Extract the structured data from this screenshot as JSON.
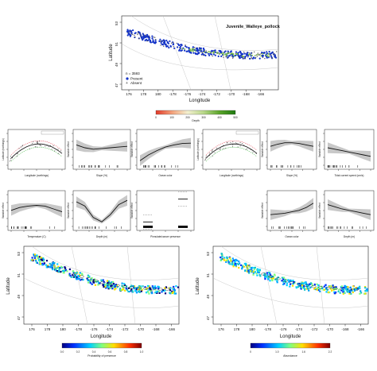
{
  "chart_data": [
    {
      "type": "scatter",
      "title": "Juvenile_Walleye_pollock",
      "xlabel": "Longitude",
      "ylabel": "Latitude",
      "x_ticks": [
        "176",
        "178",
        "180",
        "-178",
        "-176",
        "-174",
        "-172",
        "-170",
        "-168",
        "-166"
      ],
      "y_ticks": [
        "53",
        "51",
        "49",
        "47"
      ],
      "legend_position": "bottom-left",
      "n_label": "n = 3593",
      "legend": [
        {
          "label": "Present",
          "color": "#1434c8",
          "marker": "dot"
        },
        {
          "label": "Absent",
          "color": "#444444",
          "marker": "plus"
        }
      ],
      "colorbar": {
        "label": "Depth",
        "ticks": [
          "0",
          "100",
          "200",
          "300",
          "400",
          "500"
        ],
        "colors": [
          "#e23a2a",
          "#f4a07a",
          "#f4f1d0",
          "#b9d88a",
          "#5ba52a",
          "#1f7a10"
        ]
      }
    },
    {
      "type": "line",
      "panels": [
        {
          "xlabel": "Longitude (northings)",
          "ylabel": "Latitude (northings)",
          "kind": "map"
        },
        {
          "xlabel": "Slope (%)",
          "ylabel": "Variable effect",
          "values": [
            0.2,
            0.0,
            -0.1,
            -0.05,
            0.0,
            0.05,
            0.1
          ]
        },
        {
          "xlabel": "Ocean color",
          "ylabel": "Variable effect",
          "values": [
            -0.9,
            -0.5,
            -0.2,
            0.05,
            0.2,
            0.3,
            0.32
          ]
        },
        {
          "xlabel": "Longitude (northings)",
          "ylabel": "Latitude (northings)",
          "kind": "map"
        },
        {
          "xlabel": "Slope (%)",
          "ylabel": "Variable effect",
          "values": [
            0.1,
            0.25,
            0.35,
            0.35,
            0.3,
            0.2,
            0.1
          ]
        },
        {
          "xlabel": "Tidal current speed (cm/s)",
          "ylabel": "Variable effect",
          "values": [
            0.0,
            -0.1,
            -0.2,
            -0.3,
            -0.4,
            -0.5,
            -0.6
          ]
        },
        {
          "xlabel": "Temperature (C)",
          "ylabel": "Variable effect",
          "values": [
            -0.1,
            0.1,
            0.2,
            0.25,
            0.2,
            0.0,
            -0.2
          ]
        },
        {
          "xlabel": "Depth (m)",
          "ylabel": "Variable effect",
          "values": [
            0.5,
            0.2,
            -0.6,
            -0.9,
            -0.4,
            0.3,
            0.6
          ]
        },
        {
          "xlabel": "Pinnulate/cancer presence",
          "ylabel": "Variable effect",
          "kind": "factor",
          "values": [
            -0.4,
            0.4
          ]
        },
        {
          "xlabel": "Ocean color",
          "ylabel": "Variable effect",
          "values": [
            -0.4,
            -0.35,
            -0.3,
            -0.2,
            -0.1,
            0.1,
            0.4
          ]
        },
        {
          "xlabel": "Depth (m)",
          "ylabel": "Variable effect",
          "values": [
            0.3,
            0.15,
            0.0,
            -0.1,
            -0.2,
            -0.3,
            -0.4
          ]
        }
      ]
    },
    {
      "type": "heatmap",
      "xlabel": "Longitude",
      "ylabel": "Latitude",
      "x_ticks": [
        "176",
        "178",
        "180",
        "-178",
        "-176",
        "-174",
        "-172",
        "-170",
        "-168",
        "-166"
      ],
      "y_ticks": [
        "53",
        "51",
        "49",
        "47"
      ],
      "colorbar": {
        "label": "Probability of presence",
        "ticks": [
          "0.0",
          "0.2",
          "0.4",
          "0.6",
          "0.8",
          "1.0"
        ]
      }
    },
    {
      "type": "heatmap",
      "xlabel": "Longitude",
      "ylabel": "Latitude",
      "x_ticks": [
        "176",
        "178",
        "180",
        "-178",
        "-176",
        "-174",
        "-172",
        "-170",
        "-168",
        "-166"
      ],
      "y_ticks": [
        "53",
        "51",
        "49",
        "47"
      ],
      "colorbar": {
        "label": "Abundance",
        "ticks": [
          "0",
          "1.0",
          "1.6",
          "2.2"
        ]
      }
    }
  ]
}
